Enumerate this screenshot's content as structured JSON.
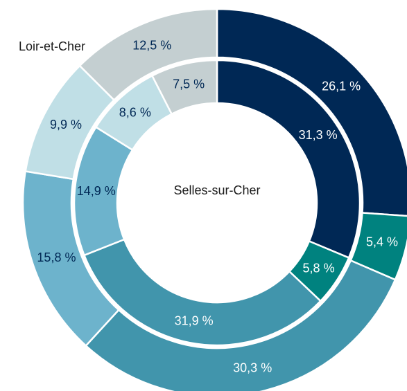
{
  "chart_data": {
    "type": "nested-donut",
    "series": [
      {
        "name": "Loir-et-Cher",
        "values": [
          26.1,
          5.4,
          30.3,
          15.8,
          9.9,
          12.5
        ],
        "value_labels": [
          "26,1 %",
          "5,4 %",
          "30,3 %",
          "15,8 %",
          "9,9 %",
          "12,5 %"
        ]
      },
      {
        "name": "Selles-sur-Cher",
        "values": [
          31.3,
          5.8,
          31.9,
          14.9,
          8.6,
          7.5
        ],
        "value_labels": [
          "31,3 %",
          "5,8 %",
          "31,9 %",
          "14,9 %",
          "8,6 %",
          "7,5 %"
        ]
      }
    ],
    "colors": [
      "#002855",
      "#00827f",
      "#4195ac",
      "#6db3cc",
      "#c0dfe6",
      "#c4cfd1"
    ]
  }
}
